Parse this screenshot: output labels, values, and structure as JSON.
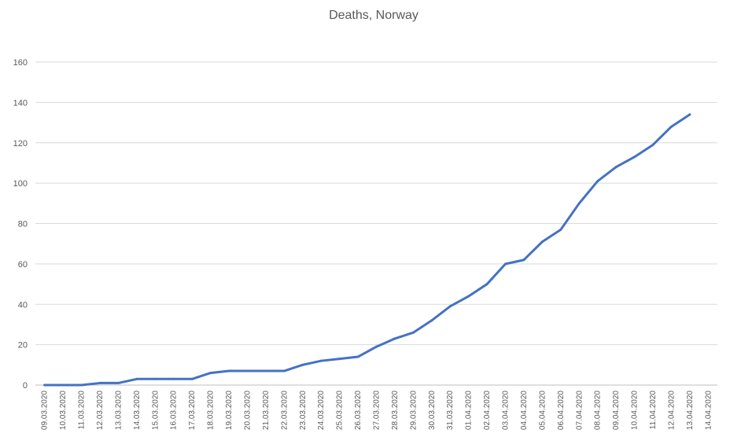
{
  "chart_data": {
    "type": "line",
    "title": "Deaths, Norway",
    "xlabel": "",
    "ylabel": "",
    "ylim": [
      0,
      160
    ],
    "yticks": [
      0,
      20,
      40,
      60,
      80,
      100,
      120,
      140,
      160
    ],
    "grid": true,
    "legend": "none",
    "categories": [
      "09.03.2020",
      "10.03.2020",
      "11.03.2020",
      "12.03.2020",
      "13.03.2020",
      "14.03.2020",
      "15.03.2020",
      "16.03.2020",
      "17.03.2020",
      "18.03.2020",
      "19.03.2020",
      "20.03.2020",
      "21.03.2020",
      "22.03.2020",
      "23.03.2020",
      "24.03.2020",
      "25.03.2020",
      "26.03.2020",
      "27.03.2020",
      "28.03.2020",
      "29.03.2020",
      "30.03.2020",
      "31.03.2020",
      "01.04.2020",
      "02.04.2020",
      "03.04.2020",
      "04.04.2020",
      "05.04.2020",
      "06.04.2020",
      "07.04.2020",
      "08.04.2020",
      "09.04.2020",
      "10.04.2020",
      "11.04.2020",
      "12.04.2020",
      "13.04.2020",
      "14.04.2020"
    ],
    "series": [
      {
        "color": "#4472c4",
        "values": [
          0,
          0,
          0,
          1,
          1,
          3,
          3,
          3,
          3,
          6,
          7,
          7,
          7,
          7,
          10,
          12,
          13,
          14,
          19,
          23,
          26,
          32,
          39,
          44,
          50,
          60,
          62,
          71,
          77,
          90,
          101,
          108,
          113,
          119,
          128,
          134,
          null
        ]
      }
    ]
  }
}
